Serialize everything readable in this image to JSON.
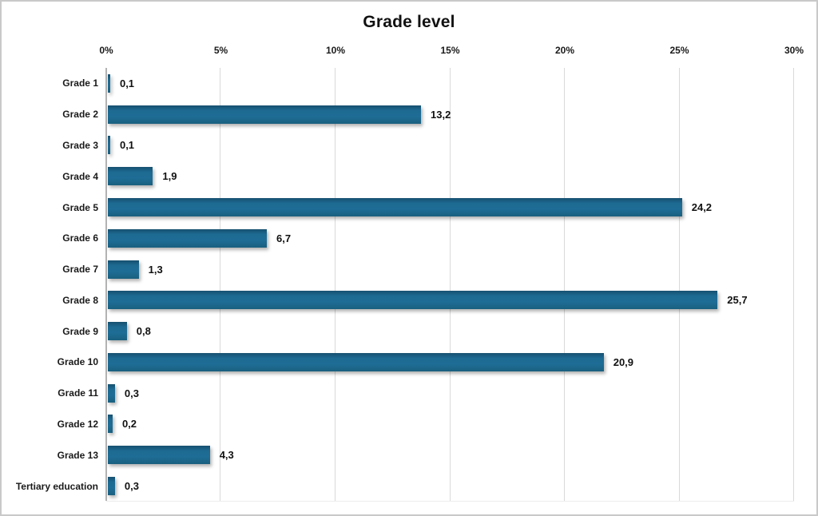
{
  "chart_data": {
    "type": "bar",
    "orientation": "horizontal",
    "title": "Grade level",
    "categories": [
      "Grade 1",
      "Grade 2",
      "Grade 3",
      "Grade 4",
      "Grade 5",
      "Grade 6",
      "Grade 7",
      "Grade 8",
      "Grade 9",
      "Grade 10",
      "Grade 11",
      "Grade 12",
      "Grade 13",
      "Tertiary education"
    ],
    "values": [
      0.1,
      13.2,
      0.1,
      1.9,
      24.2,
      6.7,
      1.3,
      25.7,
      0.8,
      20.9,
      0.3,
      0.2,
      4.3,
      0.3
    ],
    "value_labels": [
      "0,1",
      "13,2",
      "0,1",
      "1,9",
      "24,2",
      "6,7",
      "1,3",
      "25,7",
      "0,8",
      "20,9",
      "0,3",
      "0,2",
      "4,3",
      "0,3"
    ],
    "x_axis": {
      "position": "top",
      "min": 0,
      "max": 30,
      "tick_step": 5,
      "ticks": [
        "0%",
        "5%",
        "10%",
        "15%",
        "20%",
        "25%",
        "30%"
      ]
    },
    "legend": "none",
    "gridlines": true,
    "colors": {
      "bar": "#1d6a92",
      "gridline": "#d9d9d9",
      "zero_axis": "#b3b3b3",
      "text": "#111111",
      "page_border": "#c9c9c9",
      "background": "#ffffff"
    }
  }
}
